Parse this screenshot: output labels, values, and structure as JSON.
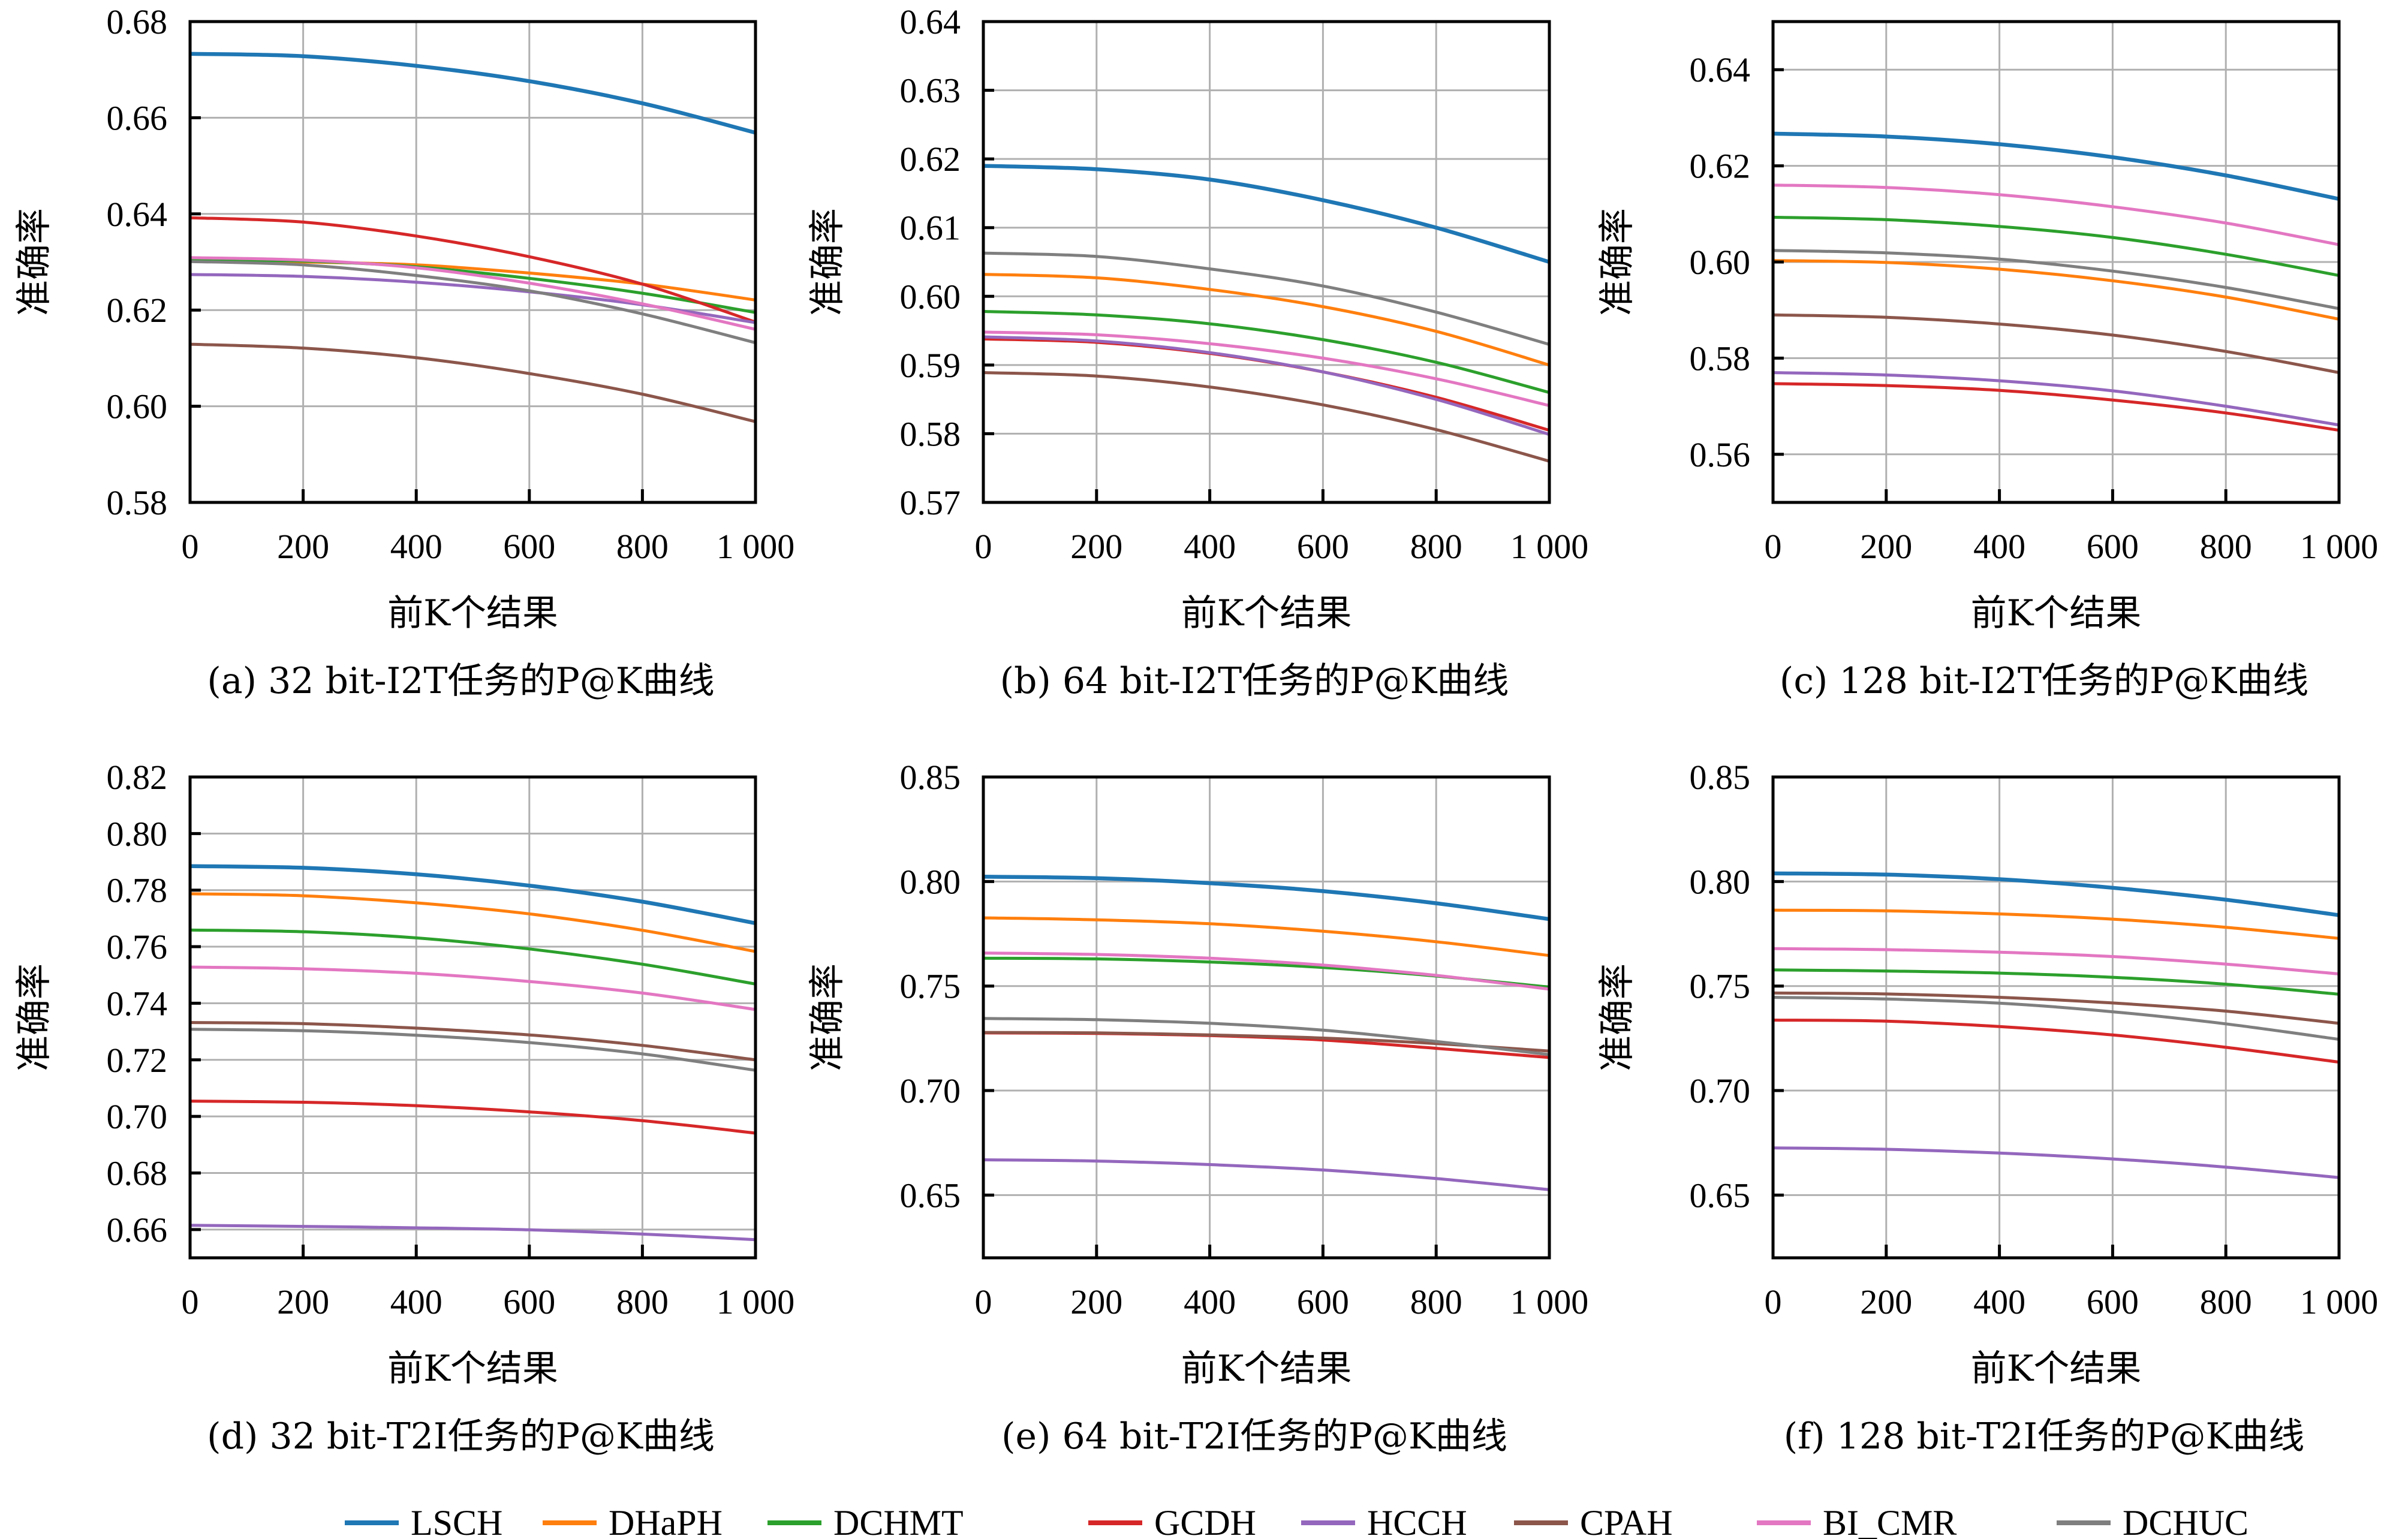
{
  "figure": {
    "legend": [
      {
        "name": "LSCH",
        "color": "#1f77b4"
      },
      {
        "name": "DHaPH",
        "color": "#ff7f0e"
      },
      {
        "name": "DCHMT",
        "color": "#2ca02c"
      },
      {
        "name": "GCDH",
        "color": "#d62728"
      },
      {
        "name": "HCCH",
        "color": "#9467bd"
      },
      {
        "name": "CPAH",
        "color": "#8c564b"
      },
      {
        "name": "BI_CMR",
        "color": "#e377c2"
      },
      {
        "name": "DCHUC",
        "color": "#7f7f7f"
      }
    ]
  },
  "chart_data": [
    {
      "type": "line",
      "caption": "(a) 32 bit-I2T任务的P@K曲线",
      "xlabel": "前K个结果",
      "ylabel": "准确率",
      "x": [
        0,
        200,
        400,
        600,
        800,
        1000
      ],
      "xticks": [
        "0",
        "200",
        "400",
        "600",
        "800",
        "1 000"
      ],
      "xlim": [
        0,
        1000
      ],
      "ylim": [
        0.58,
        0.68
      ],
      "yticks": [
        "0.58",
        "0.60",
        "0.62",
        "0.64",
        "0.66",
        "0.68"
      ],
      "ytick_values": [
        0.58,
        0.6,
        0.62,
        0.64,
        0.66,
        0.68
      ],
      "grid": true,
      "series": [
        {
          "name": "LSCH",
          "values": [
            0.6733,
            0.6728,
            0.6708,
            0.6676,
            0.663,
            0.6569
          ]
        },
        {
          "name": "DHaPH",
          "values": [
            0.6304,
            0.63,
            0.6294,
            0.6277,
            0.6254,
            0.6221
          ]
        },
        {
          "name": "DCHMT",
          "values": [
            0.6304,
            0.6302,
            0.629,
            0.6266,
            0.6235,
            0.6195
          ]
        },
        {
          "name": "GCDH",
          "values": [
            0.6392,
            0.6383,
            0.6354,
            0.6311,
            0.6254,
            0.6175
          ]
        },
        {
          "name": "HCCH",
          "values": [
            0.6274,
            0.627,
            0.6258,
            0.6238,
            0.6211,
            0.6174
          ]
        },
        {
          "name": "CPAH",
          "values": [
            0.6129,
            0.6121,
            0.6101,
            0.6068,
            0.6025,
            0.5968
          ]
        },
        {
          "name": "BI_CMR",
          "values": [
            0.6309,
            0.6304,
            0.6288,
            0.6256,
            0.6213,
            0.616
          ]
        },
        {
          "name": "DCHUC",
          "values": [
            0.6301,
            0.6294,
            0.6272,
            0.624,
            0.6192,
            0.6132
          ]
        }
      ]
    },
    {
      "type": "line",
      "caption": "(b) 64 bit-I2T任务的P@K曲线",
      "xlabel": "前K个结果",
      "ylabel": "准确率",
      "x": [
        0,
        200,
        400,
        600,
        800,
        1000
      ],
      "xticks": [
        "0",
        "200",
        "400",
        "600",
        "800",
        "1 000"
      ],
      "xlim": [
        0,
        1000
      ],
      "ylim": [
        0.57,
        0.64
      ],
      "yticks": [
        "0.57",
        "0.58",
        "0.59",
        "0.60",
        "0.61",
        "0.62",
        "0.63",
        "0.64"
      ],
      "ytick_values": [
        0.57,
        0.58,
        0.59,
        0.6,
        0.61,
        0.62,
        0.63,
        0.64
      ],
      "grid": true,
      "series": [
        {
          "name": "LSCH",
          "values": [
            0.619,
            0.6185,
            0.617,
            0.614,
            0.61,
            0.605
          ]
        },
        {
          "name": "DHaPH",
          "values": [
            0.6032,
            0.6027,
            0.601,
            0.5985,
            0.5949,
            0.59
          ]
        },
        {
          "name": "DCHMT",
          "values": [
            0.5978,
            0.5973,
            0.596,
            0.5937,
            0.5904,
            0.586
          ]
        },
        {
          "name": "GCDH",
          "values": [
            0.5938,
            0.5933,
            0.5917,
            0.589,
            0.5853,
            0.5805
          ]
        },
        {
          "name": "HCCH",
          "values": [
            0.5941,
            0.5935,
            0.5918,
            0.589,
            0.585,
            0.5799
          ]
        },
        {
          "name": "CPAH",
          "values": [
            0.5889,
            0.5884,
            0.5868,
            0.5842,
            0.5806,
            0.576
          ]
        },
        {
          "name": "BI_CMR",
          "values": [
            0.5948,
            0.5944,
            0.5931,
            0.591,
            0.588,
            0.5841
          ]
        },
        {
          "name": "DCHUC",
          "values": [
            0.6063,
            0.6058,
            0.604,
            0.6015,
            0.5977,
            0.593
          ]
        }
      ]
    },
    {
      "type": "line",
      "caption": "(c) 128 bit-I2T任务的P@K曲线",
      "xlabel": "前K个结果",
      "ylabel": "准确率",
      "x": [
        0,
        200,
        400,
        600,
        800,
        1000
      ],
      "xticks": [
        "0",
        "200",
        "400",
        "600",
        "800",
        "1 000"
      ],
      "xlim": [
        0,
        1000
      ],
      "ylim": [
        0.55,
        0.65
      ],
      "yticks": [
        "0.56",
        "0.58",
        "0.60",
        "0.62",
        "0.64"
      ],
      "ytick_values": [
        0.56,
        0.58,
        0.6,
        0.62,
        0.64
      ],
      "grid": true,
      "series": [
        {
          "name": "LSCH",
          "values": [
            0.6267,
            0.6261,
            0.6245,
            0.6218,
            0.618,
            0.6131
          ]
        },
        {
          "name": "DHaPH",
          "values": [
            0.6003,
            0.5999,
            0.5985,
            0.5961,
            0.5927,
            0.5881
          ]
        },
        {
          "name": "DCHMT",
          "values": [
            0.6093,
            0.6088,
            0.6074,
            0.6051,
            0.6016,
            0.5972
          ]
        },
        {
          "name": "GCDH",
          "values": [
            0.5747,
            0.5743,
            0.5733,
            0.5713,
            0.5686,
            0.565
          ]
        },
        {
          "name": "HCCH",
          "values": [
            0.577,
            0.5765,
            0.5753,
            0.5732,
            0.57,
            0.5661
          ]
        },
        {
          "name": "CPAH",
          "values": [
            0.589,
            0.5885,
            0.5871,
            0.5848,
            0.5814,
            0.577
          ]
        },
        {
          "name": "BI_CMR",
          "values": [
            0.616,
            0.6155,
            0.614,
            0.6115,
            0.6081,
            0.6036
          ]
        },
        {
          "name": "DCHUC",
          "values": [
            0.6024,
            0.6019,
            0.6006,
            0.5981,
            0.5947,
            0.5903
          ]
        }
      ]
    },
    {
      "type": "line",
      "caption": "(d) 32 bit-T2I任务的P@K曲线",
      "xlabel": "前K个结果",
      "ylabel": "准确率",
      "x": [
        0,
        200,
        400,
        600,
        800,
        1000
      ],
      "xticks": [
        "0",
        "200",
        "400",
        "600",
        "800",
        "1 000"
      ],
      "xlim": [
        0,
        1000
      ],
      "ylim": [
        0.65,
        0.82
      ],
      "yticks": [
        "0.66",
        "0.68",
        "0.70",
        "0.72",
        "0.74",
        "0.76",
        "0.78",
        "0.80",
        "0.82"
      ],
      "ytick_values": [
        0.66,
        0.68,
        0.7,
        0.72,
        0.74,
        0.76,
        0.78,
        0.8,
        0.82
      ],
      "grid": true,
      "series": [
        {
          "name": "LSCH",
          "values": [
            0.7885,
            0.7879,
            0.7856,
            0.7816,
            0.7759,
            0.7683
          ]
        },
        {
          "name": "DHaPH",
          "values": [
            0.7787,
            0.778,
            0.7755,
            0.7716,
            0.7658,
            0.7583
          ]
        },
        {
          "name": "DCHMT",
          "values": [
            0.7659,
            0.7653,
            0.7631,
            0.7592,
            0.7538,
            0.7468
          ]
        },
        {
          "name": "GCDH",
          "values": [
            0.7054,
            0.705,
            0.7038,
            0.7016,
            0.6985,
            0.6941
          ]
        },
        {
          "name": "HCCH",
          "values": [
            0.6615,
            0.6611,
            0.6606,
            0.6599,
            0.6584,
            0.6564
          ]
        },
        {
          "name": "CPAH",
          "values": [
            0.7332,
            0.7328,
            0.7312,
            0.7288,
            0.7251,
            0.72
          ]
        },
        {
          "name": "BI_CMR",
          "values": [
            0.7528,
            0.7522,
            0.7506,
            0.7477,
            0.7436,
            0.7378
          ]
        },
        {
          "name": "DCHUC",
          "values": [
            0.7308,
            0.7303,
            0.7287,
            0.7261,
            0.7221,
            0.7163
          ]
        }
      ]
    },
    {
      "type": "line",
      "caption": "(e) 64 bit-T2I任务的P@K曲线",
      "xlabel": "前K个结果",
      "ylabel": "准确率",
      "x": [
        0,
        200,
        400,
        600,
        800,
        1000
      ],
      "xticks": [
        "0",
        "200",
        "400",
        "600",
        "800",
        "1 000"
      ],
      "xlim": [
        0,
        1000
      ],
      "ylim": [
        0.62,
        0.85
      ],
      "yticks": [
        "0.65",
        "0.70",
        "0.75",
        "0.80",
        "0.85"
      ],
      "ytick_values": [
        0.65,
        0.7,
        0.75,
        0.8,
        0.85
      ],
      "grid": true,
      "series": [
        {
          "name": "LSCH",
          "values": [
            0.8023,
            0.8016,
            0.7992,
            0.7954,
            0.7896,
            0.782
          ]
        },
        {
          "name": "DHaPH",
          "values": [
            0.7826,
            0.7817,
            0.7798,
            0.7762,
            0.7712,
            0.7646
          ]
        },
        {
          "name": "DCHMT",
          "values": [
            0.7633,
            0.763,
            0.7615,
            0.7589,
            0.7548,
            0.7495
          ]
        },
        {
          "name": "GCDH",
          "values": [
            0.7276,
            0.7273,
            0.7263,
            0.7242,
            0.7202,
            0.7158
          ]
        },
        {
          "name": "HCCH",
          "values": [
            0.6669,
            0.6663,
            0.6646,
            0.662,
            0.6579,
            0.6526
          ]
        },
        {
          "name": "CPAH",
          "values": [
            0.7278,
            0.7276,
            0.7266,
            0.7251,
            0.7225,
            0.7189
          ]
        },
        {
          "name": "BI_CMR",
          "values": [
            0.7658,
            0.7651,
            0.7633,
            0.76,
            0.7551,
            0.7485
          ]
        },
        {
          "name": "DCHUC",
          "values": [
            0.7345,
            0.7339,
            0.7322,
            0.7289,
            0.7235,
            0.7172
          ]
        }
      ]
    },
    {
      "type": "line",
      "caption": "(f) 128 bit-T2I任务的P@K曲线",
      "xlabel": "前K个结果",
      "ylabel": "准确率",
      "x": [
        0,
        200,
        400,
        600,
        800,
        1000
      ],
      "xticks": [
        "0",
        "200",
        "400",
        "600",
        "800",
        "1 000"
      ],
      "xlim": [
        0,
        1000
      ],
      "ylim": [
        0.62,
        0.85
      ],
      "yticks": [
        "0.65",
        "0.70",
        "0.75",
        "0.80",
        "0.85"
      ],
      "ytick_values": [
        0.65,
        0.7,
        0.75,
        0.8,
        0.85
      ],
      "grid": true,
      "series": [
        {
          "name": "LSCH",
          "values": [
            0.8039,
            0.8033,
            0.8011,
            0.797,
            0.7913,
            0.7839
          ]
        },
        {
          "name": "DHaPH",
          "values": [
            0.7863,
            0.786,
            0.7845,
            0.782,
            0.7781,
            0.7728
          ]
        },
        {
          "name": "DCHMT",
          "values": [
            0.7577,
            0.7572,
            0.7562,
            0.7542,
            0.7509,
            0.7461
          ]
        },
        {
          "name": "GCDH",
          "values": [
            0.7337,
            0.7332,
            0.7306,
            0.7266,
            0.7207,
            0.7136
          ]
        },
        {
          "name": "HCCH",
          "values": [
            0.6726,
            0.6719,
            0.6701,
            0.6673,
            0.6634,
            0.6584
          ]
        },
        {
          "name": "CPAH",
          "values": [
            0.7467,
            0.7462,
            0.7446,
            0.7419,
            0.738,
            0.7322
          ]
        },
        {
          "name": "BI_CMR",
          "values": [
            0.7679,
            0.7674,
            0.7662,
            0.7641,
            0.7605,
            0.7558
          ]
        },
        {
          "name": "DCHUC",
          "values": [
            0.7446,
            0.7438,
            0.7418,
            0.7377,
            0.7319,
            0.7245
          ]
        }
      ]
    }
  ]
}
